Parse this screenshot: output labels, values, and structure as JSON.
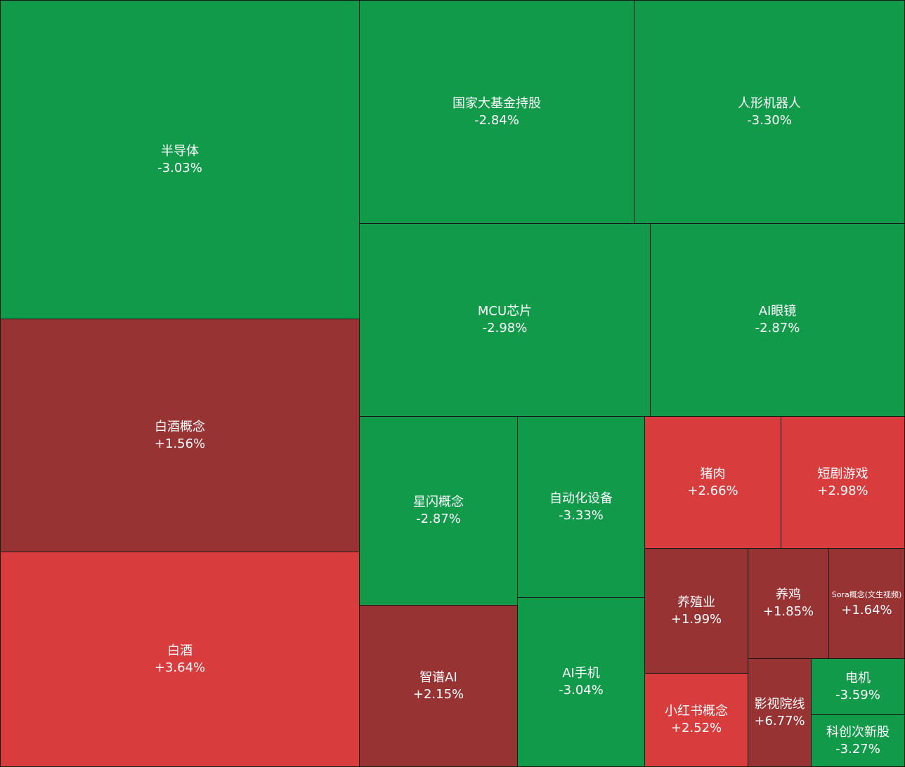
{
  "colors": {
    "down": "#119a49",
    "up_strong": "#d93c3d",
    "up_mild": "#983334",
    "gap": "#1a1a1a"
  },
  "chart_data": {
    "type": "treemap",
    "title": "",
    "items": [
      {
        "name": "半导体",
        "change": "-3.03%",
        "value": -3.03,
        "color": "down"
      },
      {
        "name": "白酒概念",
        "change": "+1.56%",
        "value": 1.56,
        "color": "up_mild"
      },
      {
        "name": "白酒",
        "change": "+3.64%",
        "value": 3.64,
        "color": "up_strong"
      },
      {
        "name": "国家大基金持股",
        "change": "-2.84%",
        "value": -2.84,
        "color": "down"
      },
      {
        "name": "人形机器人",
        "change": "-3.30%",
        "value": -3.3,
        "color": "down"
      },
      {
        "name": "MCU芯片",
        "change": "-2.98%",
        "value": -2.98,
        "color": "down"
      },
      {
        "name": "AI眼镜",
        "change": "-2.87%",
        "value": -2.87,
        "color": "down"
      },
      {
        "name": "星闪概念",
        "change": "-2.87%",
        "value": -2.87,
        "color": "down"
      },
      {
        "name": "智谱AI",
        "change": "+2.15%",
        "value": 2.15,
        "color": "up_mild"
      },
      {
        "name": "自动化设备",
        "change": "-3.33%",
        "value": -3.33,
        "color": "down"
      },
      {
        "name": "AI手机",
        "change": "-3.04%",
        "value": -3.04,
        "color": "down"
      },
      {
        "name": "猪肉",
        "change": "+2.66%",
        "value": 2.66,
        "color": "up_strong"
      },
      {
        "name": "短剧游戏",
        "change": "+2.98%",
        "value": 2.98,
        "color": "up_strong"
      },
      {
        "name": "养殖业",
        "change": "+1.99%",
        "value": 1.99,
        "color": "up_mild"
      },
      {
        "name": "养鸡",
        "change": "+1.85%",
        "value": 1.85,
        "color": "up_mild"
      },
      {
        "name": "Sora概念(文生视频)",
        "change": "+1.64%",
        "value": 1.64,
        "color": "up_mild"
      },
      {
        "name": "小红书概念",
        "change": "+2.52%",
        "value": 2.52,
        "color": "up_strong"
      },
      {
        "name": "影视院线",
        "change": "+6.77%",
        "value": 6.77,
        "color": "up_mild"
      },
      {
        "name": "电机",
        "change": "-3.59%",
        "value": -3.59,
        "color": "down"
      },
      {
        "name": "科创次新股",
        "change": "-3.27%",
        "value": -3.27,
        "color": "down"
      }
    ]
  }
}
